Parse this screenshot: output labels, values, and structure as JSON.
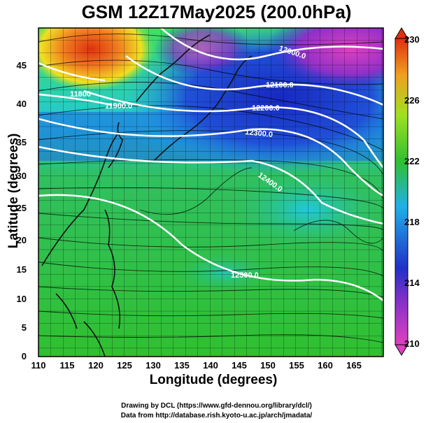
{
  "title": "GSM 12Z17May2025 (200.0hPa)",
  "axes": {
    "xlabel": "Longitude (degrees)",
    "ylabel": "Latitude  (degrees)",
    "x_ticks": [
      "110",
      "115",
      "120",
      "125",
      "130",
      "135",
      "140",
      "145",
      "150",
      "155",
      "160",
      "165"
    ],
    "y_ticks": [
      "0",
      "5",
      "10",
      "15",
      "20",
      "25",
      "30",
      "35",
      "40",
      "45"
    ]
  },
  "colorbar": {
    "ticks": [
      "210",
      "214",
      "218",
      "222",
      "226",
      "230"
    ],
    "colors": [
      "#e040c0",
      "#2030c8",
      "#20b0e8",
      "#30c030",
      "#f0e020",
      "#e03010"
    ]
  },
  "contours": [
    {
      "label": "12000.0"
    },
    {
      "label": "12100.0"
    },
    {
      "label": "12200.0"
    },
    {
      "label": "12300.0"
    },
    {
      "label": "12400.0"
    },
    {
      "label": "12500.0"
    },
    {
      "label": "11800"
    },
    {
      "label": "11900.0"
    }
  ],
  "credits": {
    "line1": "Drawing by DCL (https://www.gfd-dennou.org/library/dcl/)",
    "line2": "Data from http://database.rish.kyoto-u.ac.jp/arch/jmadata/"
  },
  "chart_data": {
    "type": "heatmap",
    "title": "GSM 12Z17May2025 (200.0hPa)",
    "xlabel": "Longitude (degrees)",
    "ylabel": "Latitude  (degrees)",
    "xlim": [
      110,
      170
    ],
    "ylim": [
      0,
      50
    ],
    "x_ticks": [
      110,
      115,
      120,
      125,
      130,
      135,
      140,
      145,
      150,
      155,
      160,
      165
    ],
    "y_ticks": [
      0,
      5,
      10,
      15,
      20,
      25,
      30,
      35,
      40,
      45
    ],
    "colorbar_range": [
      210,
      230
    ],
    "colorbar_ticks": [
      210,
      214,
      218,
      222,
      226,
      230
    ],
    "contour_levels": [
      11800,
      11900,
      12000,
      12100,
      12200,
      12300,
      12400,
      12500
    ],
    "field": "temperature (shaded), geopotential height (contours), wind (streamlines)"
  }
}
